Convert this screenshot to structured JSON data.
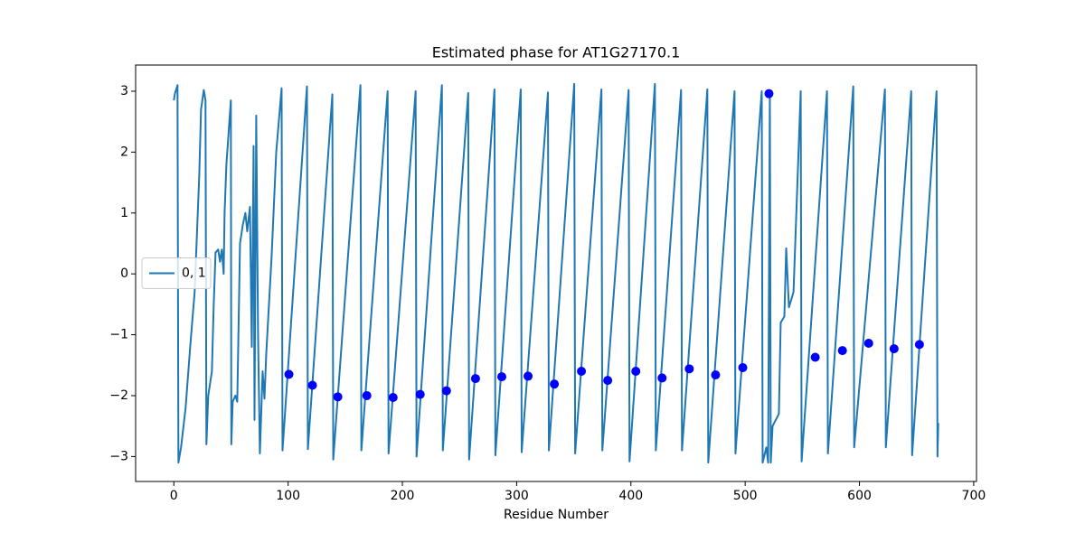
{
  "chart_data": {
    "type": "line",
    "title": "Estimated phase for AT1G27170.1",
    "x_label": "Residue Number",
    "xlim": [
      -33.45,
      702.45
    ],
    "ylim": [
      -3.41,
      3.43
    ],
    "xticks": [
      0,
      100,
      200,
      300,
      400,
      500,
      600,
      700
    ],
    "yticks": [
      {
        "value": -3,
        "label": "−3"
      },
      {
        "value": -2,
        "label": "−2"
      },
      {
        "value": -1,
        "label": "−1"
      },
      0,
      1,
      2,
      3
    ],
    "legend": "center left",
    "series": [
      {
        "name": "0, 1",
        "type": "line",
        "color": "#1f77b4",
        "x": [
          0,
          0.8,
          3.2,
          4.0,
          6.3,
          10.3,
          14.3,
          18.2,
          22.2,
          23.8,
          26.2,
          27.7,
          28.5,
          30.1,
          33.3,
          34.9,
          36.5,
          38.8,
          40.4,
          42.0,
          43.6,
          44.4,
          46.0,
          49.9,
          50.3,
          51.5,
          53.9,
          55.5,
          57.9,
          60.3,
          62.6,
          64.2,
          66.6,
          68.2,
          69.8,
          70.6,
          72.1,
          73.7,
          75.3,
          77.7,
          79.3,
          80.9,
          85.6,
          89.6,
          94.3,
          95.1,
          116.5,
          117.3,
          138.7,
          139.5,
          163.3,
          164.1,
          187.1,
          187.9,
          211.6,
          212.4,
          234.6,
          235.4,
          257.6,
          258.4,
          280.6,
          281.4,
          303.6,
          304.4,
          327.4,
          328.2,
          350.4,
          351.2,
          374.2,
          375.0,
          398.0,
          398.8,
          421.0,
          421.8,
          443.9,
          444.7,
          466.9,
          467.7,
          490.7,
          491.5,
          514.5,
          515.3,
          518.5,
          520.1,
          521.6,
          522.4,
          524.0,
          529.5,
          531.1,
          534.3,
          535.9,
          538.3,
          542.3,
          548.6,
          549.4,
          571.6,
          572.4,
          594.6,
          595.4,
          622.3,
          623.1,
          645.3,
          646.1,
          667.5,
          668.3,
          669
        ],
        "values": [
          2.85,
          2.95,
          3.1,
          -3.1,
          -2.85,
          -2.2,
          -1.2,
          -0.3,
          1.6,
          2.7,
          3.02,
          2.85,
          -2.8,
          -2.0,
          -1.6,
          -0.5,
          0.35,
          0.4,
          0.2,
          0.4,
          0,
          1.0,
          1.8,
          2.85,
          -2.8,
          -2.1,
          -2.0,
          -2.1,
          0.5,
          0.8,
          1.0,
          0.7,
          1.1,
          -1.2,
          2.1,
          -2.4,
          2.6,
          -1.0,
          -2.95,
          -1.6,
          -2.05,
          -1.3,
          0.3,
          2.0,
          3.05,
          -2.9,
          3.08,
          -2.88,
          2.95,
          -3.05,
          3.1,
          -2.9,
          3.0,
          -2.95,
          3.0,
          -3.0,
          3.1,
          -2.9,
          2.97,
          -3.05,
          3.03,
          -2.98,
          3.03,
          -2.93,
          2.98,
          -2.9,
          3.12,
          -2.95,
          3.03,
          -2.9,
          3.02,
          -3.08,
          3.12,
          -2.9,
          3.02,
          -2.9,
          3.03,
          -3.1,
          3.0,
          -2.95,
          3.0,
          -3.1,
          -2.85,
          -3.1,
          2.95,
          -3.1,
          -2.5,
          -2.3,
          -0.8,
          -0.7,
          0.42,
          -0.55,
          -0.3,
          3.0,
          -3.08,
          3.0,
          -2.95,
          3.08,
          -2.85,
          3.03,
          -2.85,
          3.0,
          -2.98,
          3.0,
          -3.0,
          -2.45
        ]
      },
      {
        "type": "scatter",
        "color": "#0000ff",
        "x": [
          100.7,
          121.3,
          143.5,
          168.9,
          191.9,
          215.6,
          238.6,
          264.0,
          287.0,
          310.0,
          333.0,
          356.7,
          379.7,
          404.3,
          427.3,
          451.1,
          474.1,
          497.9,
          520.8,
          561.3,
          585.1,
          608.1,
          630.3,
          652.5
        ],
        "values": [
          -1.65,
          -1.83,
          -2.02,
          -2.0,
          -2.03,
          -1.98,
          -1.92,
          -1.72,
          -1.69,
          -1.68,
          -1.81,
          -1.6,
          -1.75,
          -1.6,
          -1.71,
          -1.56,
          -1.66,
          -1.54,
          2.96,
          -1.37,
          -1.26,
          -1.14,
          -1.23,
          -1.16
        ]
      }
    ]
  }
}
